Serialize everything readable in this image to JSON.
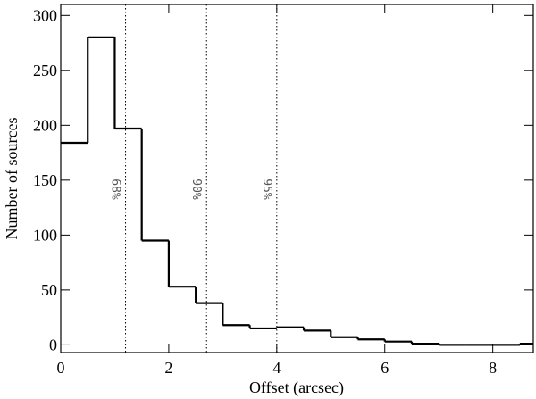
{
  "chart_data": {
    "type": "histogram",
    "xlabel": "Offset (arcsec)",
    "ylabel": "Number of sources",
    "bins": [
      0,
      0.5,
      1,
      1.5,
      2,
      2.5,
      3,
      3.5,
      4,
      4.5,
      5,
      5.5,
      6,
      6.5,
      7,
      7.5,
      8,
      8.5,
      9
    ],
    "values": [
      184,
      280,
      197,
      95,
      53,
      38,
      18,
      15,
      16,
      13,
      7,
      5,
      3,
      1,
      0,
      0,
      0,
      1
    ],
    "color": "#000000",
    "xlim": [
      0,
      8.75
    ],
    "xticks": [
      0,
      2,
      4,
      6,
      8
    ],
    "ylim": [
      -7,
      310
    ],
    "yticks": [
      0,
      50,
      100,
      150,
      200,
      250,
      300
    ],
    "annotations": [
      {
        "x": 1.2,
        "label": "68%"
      },
      {
        "x": 2.7,
        "label": "90%"
      },
      {
        "x": 4.0,
        "label": "95%"
      }
    ]
  }
}
